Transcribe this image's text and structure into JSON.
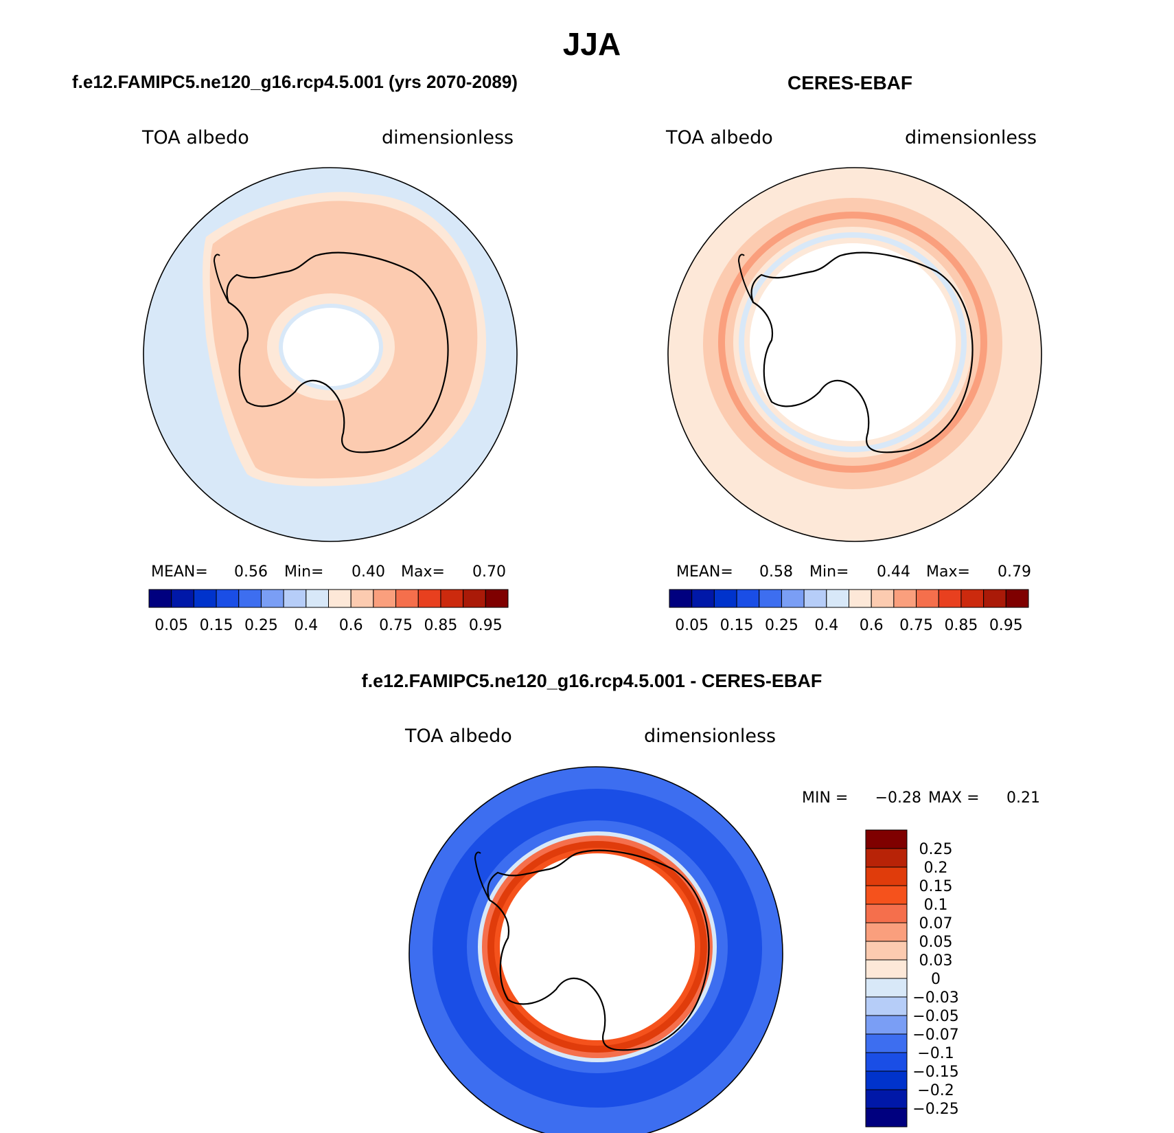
{
  "chart_data": {
    "type": "heatmap",
    "projection": "South polar stereographic",
    "title": "JJA",
    "colors": {
      "abs_palette": [
        "#00007f",
        "#0018a8",
        "#0033cc",
        "#1a4ee6",
        "#3d6ef0",
        "#7a9ef5",
        "#b6cdf8",
        "#d8e8f8",
        "#fde8d8",
        "#fccbb0",
        "#fa9f7d",
        "#f56f4c",
        "#e8401f",
        "#cc2a0e",
        "#aa1a08",
        "#7f0000"
      ],
      "diff_palette": [
        "#00007f",
        "#0018a8",
        "#0033cc",
        "#1a4ee6",
        "#3d6ef0",
        "#7a9ef5",
        "#b6cdf8",
        "#d8e8f8",
        "#fde8d8",
        "#fccbb0",
        "#fa9f7d",
        "#f56f4c",
        "#f5521c",
        "#e03c0b",
        "#b82307",
        "#7f0000"
      ]
    },
    "panels": [
      {
        "id": "model",
        "title": "f.e12.FAMIPC5.ne120_g16.rcp4.5.001 (yrs 2070-2089)",
        "variable": "TOA albedo",
        "units": "dimensionless",
        "stats": {
          "mean_label": "MEAN=",
          "mean": "0.56",
          "min_label": "Min=",
          "min": "0.40",
          "max_label": "Max=",
          "max": "0.70"
        },
        "colorbar_ticks": [
          "0.05",
          "0.15",
          "0.25",
          "0.4",
          "0.6",
          "0.75",
          "0.85",
          "0.95"
        ],
        "levels": [
          0.05,
          0.1,
          0.15,
          0.2,
          0.25,
          0.3,
          0.4,
          0.5,
          0.6,
          0.7,
          0.75,
          0.8,
          0.85,
          0.9,
          0.95
        ],
        "zones": [
          {
            "lat_range": [
              -90,
              -78
            ],
            "value": "missing"
          },
          {
            "lat_range": [
              -78,
              -74
            ],
            "value": 0.5
          },
          {
            "lat_range": [
              -74,
              -55
            ],
            "value": 0.65
          },
          {
            "lat_range": [
              -55,
              -52
            ],
            "value": 0.55
          },
          {
            "lat_range": [
              -52,
              -40
            ],
            "value": 0.45
          }
        ]
      },
      {
        "id": "obs",
        "title": "CERES-EBAF",
        "variable": "TOA albedo",
        "units": "dimensionless",
        "stats": {
          "mean_label": "MEAN=",
          "mean": "0.58",
          "min_label": "Min=",
          "min": "0.44",
          "max_label": "Max=",
          "max": "0.79"
        },
        "colorbar_ticks": [
          "0.05",
          "0.15",
          "0.25",
          "0.4",
          "0.6",
          "0.75",
          "0.85",
          "0.95"
        ],
        "levels": [
          0.05,
          0.1,
          0.15,
          0.2,
          0.25,
          0.3,
          0.4,
          0.5,
          0.6,
          0.7,
          0.75,
          0.8,
          0.85,
          0.9,
          0.95
        ],
        "zones": [
          {
            "lat_range": [
              -90,
              -67
            ],
            "value": "missing"
          },
          {
            "lat_range": [
              -67,
              -65
            ],
            "value": 0.55
          },
          {
            "lat_range": [
              -65,
              -63
            ],
            "value": 0.45
          },
          {
            "lat_range": [
              -63,
              -61
            ],
            "value": 0.55
          },
          {
            "lat_range": [
              -61,
              -59
            ],
            "value": 0.7
          },
          {
            "lat_range": [
              -59,
              -57
            ],
            "value": 0.8
          },
          {
            "lat_range": [
              -57,
              -52
            ],
            "value": 0.7
          },
          {
            "lat_range": [
              -52,
              -46
            ],
            "value": 0.65
          },
          {
            "lat_range": [
              -46,
              -40
            ],
            "value": 0.55
          }
        ]
      },
      {
        "id": "diff",
        "title": "f.e12.FAMIPC5.ne120_g16.rcp4.5.001 - CERES-EBAF",
        "variable": "TOA albedo",
        "units": "dimensionless",
        "stats": {
          "min_label": "MIN =",
          "min": "−0.28",
          "max_label": "MAX =",
          "max": "0.21"
        },
        "colorbar_ticks": [
          "0.25",
          "0.2",
          "0.15",
          "0.1",
          "0.07",
          "0.05",
          "0.03",
          "0",
          "−0.03",
          "−0.05",
          "−0.07",
          "−0.1",
          "−0.15",
          "−0.2",
          "−0.25"
        ],
        "zones": [
          {
            "lat_range": [
              -90,
              -67
            ],
            "value": "missing"
          },
          {
            "lat_range": [
              -67,
              -65
            ],
            "value": 0.12
          },
          {
            "lat_range": [
              -65,
              -62
            ],
            "value": 0.17
          },
          {
            "lat_range": [
              -62,
              -60
            ],
            "value": 0.12
          },
          {
            "lat_range": [
              -60,
              -58
            ],
            "value": -0.02
          },
          {
            "lat_range": [
              -58,
              -55
            ],
            "value": -0.12
          },
          {
            "lat_range": [
              -55,
              -48
            ],
            "value": -0.17
          },
          {
            "lat_range": [
              -48,
              -44
            ],
            "value": -0.12
          },
          {
            "lat_range": [
              -44,
              -40
            ],
            "value": -0.05
          }
        ]
      }
    ]
  }
}
